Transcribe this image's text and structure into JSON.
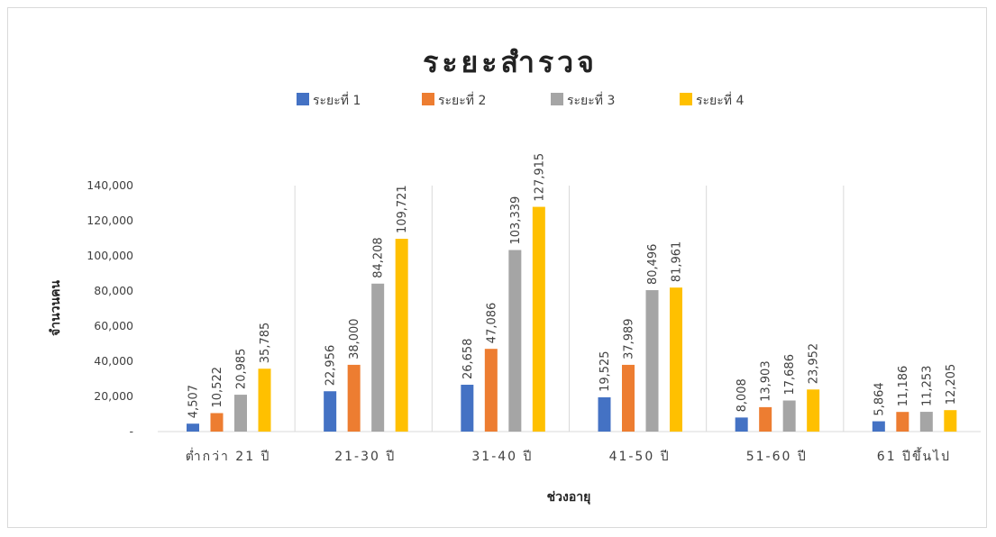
{
  "chart_data": {
    "type": "bar",
    "title": "ระยะสำรวจ",
    "xlabel": "ช่วงอายุ",
    "ylabel": "จำนวนคน",
    "categories": [
      "ต่ำกว่า 21 ปี",
      "21-30 ปี",
      "31-40 ปี",
      "41-50 ปี",
      "51-60 ปี",
      "61 ปีขึ้นไป"
    ],
    "series": [
      {
        "name": "ระยะที่ 1",
        "color": "#4472c4",
        "values": [
          4507,
          22956,
          26658,
          19525,
          8008,
          5864
        ],
        "labels": [
          "4,507",
          "22,956",
          "26,658",
          "19,525",
          "8,008",
          "5,864"
        ]
      },
      {
        "name": "ระยะที่ 2",
        "color": "#ed7d31",
        "values": [
          10522,
          38000,
          47086,
          37989,
          13903,
          11186
        ],
        "labels": [
          "10,522",
          "38,000",
          "47,086",
          "37,989",
          "13,903",
          "11,186"
        ]
      },
      {
        "name": "ระยะที่ 3",
        "color": "#a5a5a5",
        "values": [
          20985,
          84208,
          103339,
          80496,
          17686,
          11253
        ],
        "labels": [
          "20,985",
          "84,208",
          "103,339",
          "80,496",
          "17,686",
          "11,253"
        ]
      },
      {
        "name": "ระยะที่ 4",
        "color": "#ffc000",
        "values": [
          35785,
          109721,
          127915,
          81961,
          23952,
          12205
        ],
        "labels": [
          "35,785",
          "109,721",
          "127,915",
          "81,961",
          "23,952",
          "12,205"
        ]
      }
    ],
    "ylim": [
      0,
      140000
    ],
    "yticks": [
      0,
      20000,
      40000,
      60000,
      80000,
      100000,
      120000,
      140000
    ],
    "ytick_labels": [
      "-",
      "20,000",
      "40,000",
      "60,000",
      "80,000",
      "100,000",
      "120,000",
      "140,000"
    ],
    "legend_position": "top",
    "grid": "vertical separators between categories"
  }
}
